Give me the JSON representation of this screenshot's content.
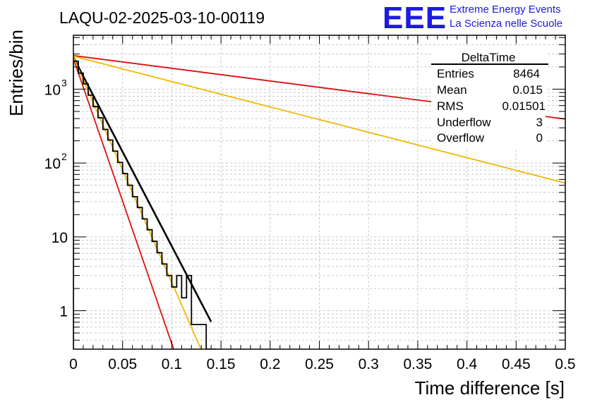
{
  "chart_data": {
    "type": "histogram",
    "title": "LAQU-02-2025-03-10-00119",
    "xlabel": "Time difference [s]",
    "ylabel": "Entries/bin",
    "xlim": [
      0,
      0.5
    ],
    "ylim_log10": [
      -0.52,
      3.73
    ],
    "y_scale": "log",
    "grid": true,
    "x_ticks": [
      {
        "v": 0,
        "label": "0"
      },
      {
        "v": 0.05,
        "label": "0.05"
      },
      {
        "v": 0.1,
        "label": "0.1"
      },
      {
        "v": 0.15,
        "label": "0.15"
      },
      {
        "v": 0.2,
        "label": "0.2"
      },
      {
        "v": 0.25,
        "label": "0.25"
      },
      {
        "v": 0.3,
        "label": "0.3"
      },
      {
        "v": 0.35,
        "label": "0.35"
      },
      {
        "v": 0.4,
        "label": "0.4"
      },
      {
        "v": 0.45,
        "label": "0.45"
      },
      {
        "v": 0.5,
        "label": "0.5"
      }
    ],
    "y_ticks": [
      {
        "v": 1,
        "base": "1",
        "exp": ""
      },
      {
        "v": 10,
        "base": "10",
        "exp": ""
      },
      {
        "v": 100,
        "base": "10",
        "exp": "2"
      },
      {
        "v": 1000,
        "base": "10",
        "exp": "3"
      }
    ],
    "histogram": {
      "name": "DeltaTime",
      "color": "#000000",
      "bin_width": 0.005,
      "values": [
        2400,
        1650,
        1180,
        830,
        580,
        410,
        285,
        205,
        145,
        102,
        72,
        50,
        35,
        25,
        17.5,
        12.5,
        8.7,
        6.1,
        4.3,
        3.0,
        2.1,
        3.0,
        1.5,
        3.0,
        0.65,
        0.65,
        0.65,
        0.3,
        0.3
      ]
    },
    "fits": [
      {
        "name": "black fit",
        "color": "#000000",
        "a": 2700,
        "tau": 0.01698,
        "x_end": 0.14,
        "width": 2.6
      },
      {
        "name": "red steep",
        "color": "#dd1111",
        "a": 2600,
        "tau": 0.01125,
        "x_end": 0.5,
        "width": 1.8
      },
      {
        "name": "yellow steep",
        "color": "#f2b705",
        "a": 2700,
        "tau": 0.01425,
        "x_end": 0.5,
        "width": 1.8
      },
      {
        "name": "red shallow",
        "color": "#dd1111",
        "a": 2850,
        "tau": 0.2527,
        "x_end": 0.5,
        "width": 1.8
      },
      {
        "name": "yellow shallow",
        "color": "#f2b705",
        "a": 2800,
        "tau": 0.1264,
        "x_end": 0.5,
        "width": 1.8
      }
    ],
    "stats_box": {
      "title": "DeltaTime",
      "rows": [
        {
          "label": "Entries",
          "value": "8464"
        },
        {
          "label": "Mean",
          "value": "0.015"
        },
        {
          "label": "RMS",
          "value": "0.01501"
        },
        {
          "label": "Underflow",
          "value": "3"
        },
        {
          "label": "Overflow",
          "value": "0"
        }
      ]
    }
  },
  "logo": {
    "mark": "EEE",
    "line1": "Extreme Energy Events",
    "line2": "La Scienza nelle Scuole",
    "color": "#1a1ae6"
  }
}
